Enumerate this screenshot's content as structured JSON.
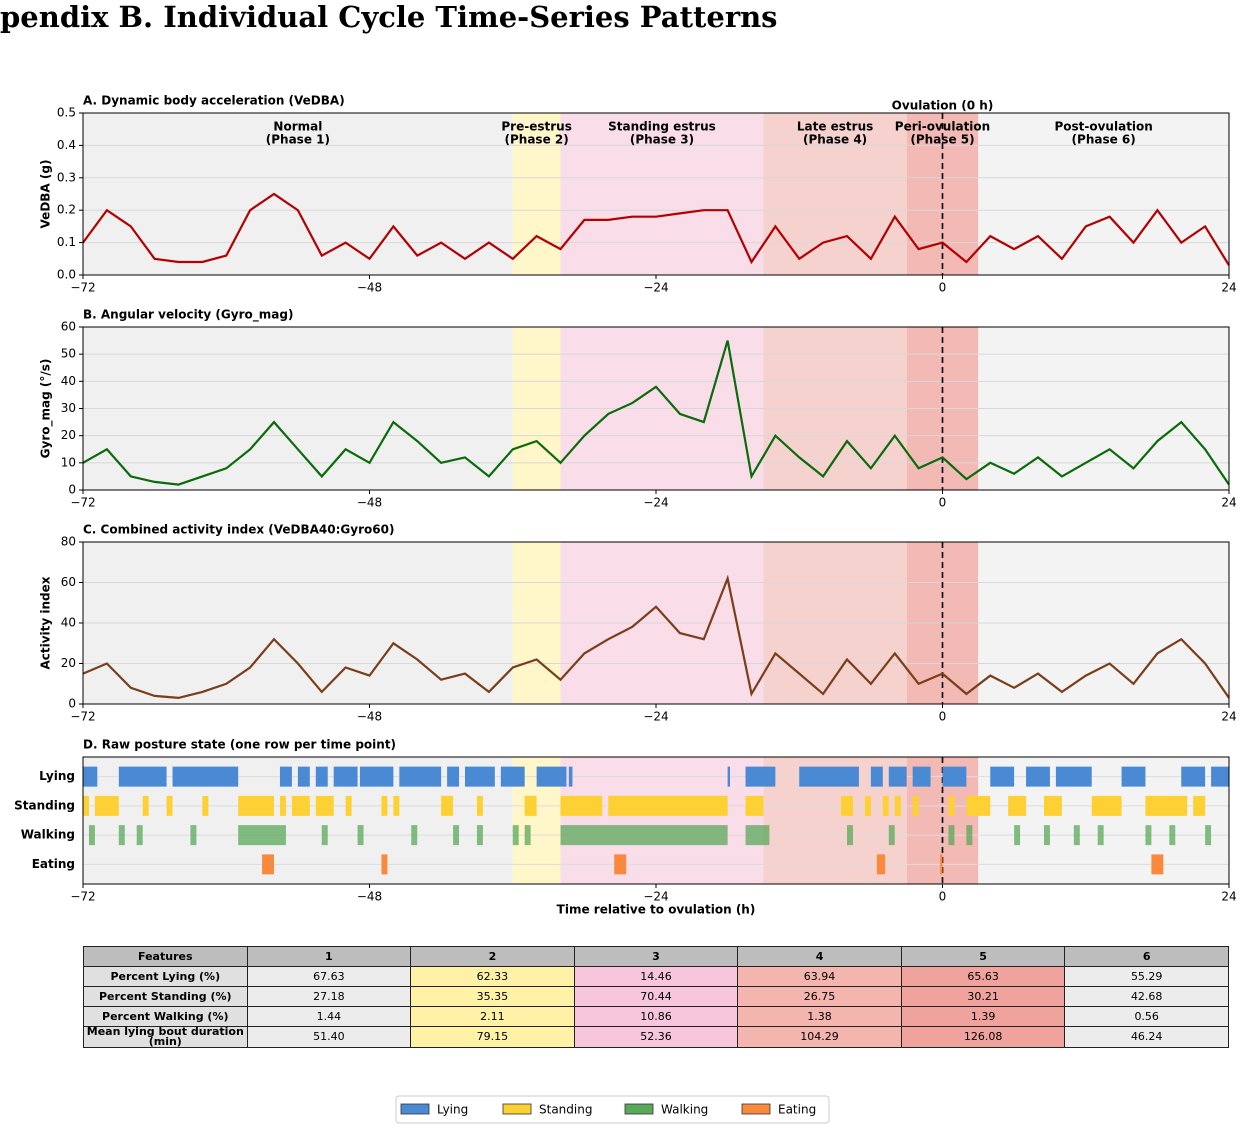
{
  "header": {
    "title": "pendix B. Individual Cycle Time-Series Patterns"
  },
  "chart_data": [
    {
      "type": "line",
      "title": "A.  Dynamic body acceleration (VeDBA)",
      "ylabel": "VeDBA (g)",
      "annotation": {
        "text": "Ovulation (0 h)",
        "x": 0
      },
      "phases": [
        {
          "name": "Normal",
          "sub": "(Phase 1)",
          "start": -72,
          "end": -36,
          "color": "#f0f0f0"
        },
        {
          "name": "Pre-estrus",
          "sub": "(Phase 2)",
          "start": -36,
          "end": -32,
          "color": "#fff6c9"
        },
        {
          "name": "Standing estrus",
          "sub": "(Phase 3)",
          "start": -32,
          "end": -15,
          "color": "#f9dde9"
        },
        {
          "name": "Late estrus",
          "sub": "(Phase 4)",
          "start": -15,
          "end": -3,
          "color": "#f6d2cf"
        },
        {
          "name": "Peri-ovulation",
          "sub": "(Phase 5)",
          "start": -3,
          "end": 3,
          "color": "#f2b9b5"
        },
        {
          "name": "Post-ovulation",
          "sub": "(Phase 6)",
          "start": 3,
          "end": 24,
          "color": "#f3f3f3"
        }
      ],
      "xlim": [
        -72,
        24
      ],
      "xticks": [
        {
          "value": -72,
          "label": "−72"
        },
        {
          "value": -48,
          "label": "−48"
        },
        {
          "value": -24,
          "label": "−24"
        },
        0,
        24
      ],
      "ylim": [
        0,
        0.5
      ],
      "yticks": [
        {
          "value": 0,
          "label": "0.0"
        },
        0.1,
        0.2,
        0.3,
        0.4,
        0.5
      ],
      "grid": true,
      "x": [
        -72,
        -70,
        -68,
        -66,
        -64,
        -62,
        -60,
        -58,
        -56,
        -54,
        -52,
        -50,
        -48,
        -46,
        -44,
        -42,
        -40,
        -38,
        -36,
        -34,
        -32,
        -30,
        -28,
        -26,
        -24,
        -22,
        -20,
        -18,
        -16,
        -14,
        -12,
        -10,
        -8,
        -6,
        -4,
        -2,
        0,
        2,
        4,
        6,
        8,
        10,
        12,
        14,
        16,
        18,
        20,
        22,
        24
      ],
      "series": [
        {
          "name": "VeDBA",
          "color": "#b30000",
          "values": [
            0.1,
            0.2,
            0.15,
            0.05,
            0.04,
            0.04,
            0.06,
            0.2,
            0.25,
            0.2,
            0.06,
            0.1,
            0.05,
            0.15,
            0.06,
            0.1,
            0.05,
            0.1,
            0.05,
            0.12,
            0.08,
            0.17,
            0.17,
            0.18,
            0.18,
            0.19,
            0.2,
            0.2,
            0.04,
            0.15,
            0.05,
            0.1,
            0.12,
            0.05,
            0.18,
            0.08,
            0.1,
            0.04,
            0.12,
            0.08,
            0.12,
            0.05,
            0.15,
            0.18,
            0.1,
            0.2,
            0.1,
            0.15,
            0.03
          ]
        }
      ]
    },
    {
      "type": "line",
      "title": "B.  Angular velocity (Gyro_mag)",
      "ylabel": "Gyro_mag (°/s)",
      "xlim": [
        -72,
        24
      ],
      "xticks": [
        {
          "value": -72,
          "label": "−72"
        },
        {
          "value": -48,
          "label": "−48"
        },
        {
          "value": -24,
          "label": "−24"
        },
        0,
        24
      ],
      "ylim": [
        0,
        60
      ],
      "yticks": [
        0,
        10,
        20,
        30,
        40,
        50,
        60
      ],
      "grid": true,
      "x": [
        -72,
        -70,
        -68,
        -66,
        -64,
        -62,
        -60,
        -58,
        -56,
        -54,
        -52,
        -50,
        -48,
        -46,
        -44,
        -42,
        -40,
        -38,
        -36,
        -34,
        -32,
        -30,
        -28,
        -26,
        -24,
        -22,
        -20,
        -18,
        -16,
        -14,
        -12,
        -10,
        -8,
        -6,
        -4,
        -2,
        0,
        2,
        4,
        6,
        8,
        10,
        12,
        14,
        16,
        18,
        20,
        22,
        24
      ],
      "series": [
        {
          "name": "Gyro_mag",
          "color": "#0b6b0b",
          "values": [
            10,
            15,
            5,
            3,
            2,
            5,
            8,
            15,
            25,
            15,
            5,
            15,
            10,
            25,
            18,
            10,
            12,
            5,
            15,
            18,
            10,
            20,
            28,
            32,
            38,
            28,
            25,
            55,
            5,
            20,
            12,
            5,
            18,
            8,
            20,
            8,
            12,
            4,
            10,
            6,
            12,
            5,
            10,
            15,
            8,
            18,
            25,
            15,
            2
          ]
        }
      ]
    },
    {
      "type": "line",
      "title": "C.  Combined activity index (VeDBA40:Gyro60)",
      "ylabel": "Activity index",
      "xlim": [
        -72,
        24
      ],
      "xticks": [
        {
          "value": -72,
          "label": "−72"
        },
        {
          "value": -48,
          "label": "−48"
        },
        {
          "value": -24,
          "label": "−24"
        },
        0,
        24
      ],
      "ylim": [
        0,
        80
      ],
      "yticks": [
        0,
        20,
        40,
        60,
        80
      ],
      "grid": true,
      "x": [
        -72,
        -70,
        -68,
        -66,
        -64,
        -62,
        -60,
        -58,
        -56,
        -54,
        -52,
        -50,
        -48,
        -46,
        -44,
        -42,
        -40,
        -38,
        -36,
        -34,
        -32,
        -30,
        -28,
        -26,
        -24,
        -22,
        -20,
        -18,
        -16,
        -14,
        -12,
        -10,
        -8,
        -6,
        -4,
        -2,
        0,
        2,
        4,
        6,
        8,
        10,
        12,
        14,
        16,
        18,
        20,
        22,
        24
      ],
      "series": [
        {
          "name": "Activity index",
          "color": "#7a3e1a",
          "values": [
            15,
            20,
            8,
            4,
            3,
            6,
            10,
            18,
            32,
            20,
            6,
            18,
            14,
            30,
            22,
            12,
            15,
            6,
            18,
            22,
            12,
            25,
            32,
            38,
            48,
            35,
            32,
            62,
            5,
            25,
            15,
            5,
            22,
            10,
            25,
            10,
            15,
            5,
            14,
            8,
            15,
            6,
            14,
            20,
            10,
            25,
            32,
            20,
            3
          ]
        }
      ]
    },
    {
      "type": "timeline",
      "title": "D.  Raw posture state (one row per time point)",
      "xlabel": "Time relative to ovulation (h)",
      "xlim": [
        -72,
        24
      ],
      "xticks": [
        {
          "value": -72,
          "label": "−72"
        },
        {
          "value": -48,
          "label": "−48"
        },
        {
          "value": -24,
          "label": "−24"
        },
        0,
        24
      ],
      "series": [
        {
          "name": "Lying",
          "color": "#4a8ad4",
          "segments": [
            [
              -72,
              -70.8
            ],
            [
              -69,
              -65
            ],
            [
              -64.5,
              -59
            ],
            [
              -55.5,
              -54.5
            ],
            [
              -54,
              -53
            ],
            [
              -52.5,
              -51.5
            ],
            [
              -51,
              -49
            ],
            [
              -48.8,
              -46
            ],
            [
              -45.5,
              -42
            ],
            [
              -41.5,
              -40.5
            ],
            [
              -40,
              -37.5
            ],
            [
              -37,
              -35
            ],
            [
              -34,
              -31.5
            ],
            [
              -31.3,
              -31
            ],
            [
              -18,
              -17.8
            ],
            [
              -16.5,
              -14
            ],
            [
              -12,
              -7
            ],
            [
              -6,
              -5
            ],
            [
              -4.5,
              -3
            ],
            [
              -2.5,
              -1
            ],
            [
              0,
              2
            ],
            [
              4,
              6
            ],
            [
              7,
              9
            ],
            [
              9.5,
              12.5
            ],
            [
              15,
              17
            ],
            [
              20,
              22
            ],
            [
              22.5,
              24
            ]
          ]
        },
        {
          "name": "Standing",
          "color": "#fdd034",
          "segments": [
            [
              -72,
              -71.5
            ],
            [
              -71,
              -69
            ],
            [
              -67,
              -66.5
            ],
            [
              -65,
              -64.5
            ],
            [
              -62,
              -61.5
            ],
            [
              -59,
              -56
            ],
            [
              -55.5,
              -55
            ],
            [
              -54.5,
              -53
            ],
            [
              -52.5,
              -51
            ],
            [
              -50,
              -49.5
            ],
            [
              -47,
              -46.5
            ],
            [
              -46,
              -45.5
            ],
            [
              -42,
              -41
            ],
            [
              -39,
              -38.5
            ],
            [
              -35,
              -34
            ],
            [
              -32,
              -28.5
            ],
            [
              -28,
              -18
            ],
            [
              -16.5,
              -15
            ],
            [
              -8.5,
              -7.5
            ],
            [
              -6.5,
              -6
            ],
            [
              -5,
              -4.5
            ],
            [
              -4,
              -3.5
            ],
            [
              -2.5,
              -2
            ],
            [
              0.5,
              1
            ],
            [
              2,
              4
            ],
            [
              5.5,
              7
            ],
            [
              8.5,
              10
            ],
            [
              12.5,
              15
            ],
            [
              17,
              20.5
            ],
            [
              21,
              22
            ]
          ]
        },
        {
          "name": "Walking",
          "color": "#5aa85a",
          "segments": [
            [
              -71.5,
              -71
            ],
            [
              -69,
              -68.5
            ],
            [
              -67.5,
              -67
            ],
            [
              -63,
              -62.5
            ],
            [
              -59,
              -55
            ],
            [
              -52,
              -51.5
            ],
            [
              -49,
              -48.5
            ],
            [
              -44.5,
              -44
            ],
            [
              -41,
              -40.5
            ],
            [
              -39,
              -38.5
            ],
            [
              -36,
              -35.5
            ],
            [
              -35,
              -34.5
            ],
            [
              -32,
              -18
            ],
            [
              -16.5,
              -14.5
            ],
            [
              -8,
              -7.5
            ],
            [
              -4.5,
              -4
            ],
            [
              0.5,
              1
            ],
            [
              2,
              2.5
            ],
            [
              6,
              6.5
            ],
            [
              8.5,
              9
            ],
            [
              11,
              11.5
            ],
            [
              13,
              13.5
            ],
            [
              17,
              17.5
            ],
            [
              19,
              19.5
            ],
            [
              22,
              22.5
            ]
          ]
        },
        {
          "name": "Eating",
          "color": "#f98a3d",
          "segments": [
            [
              -57,
              -56
            ],
            [
              -47,
              -46.5
            ],
            [
              -27.5,
              -26.5
            ],
            [
              -5.5,
              -4.8
            ],
            [
              -0.2,
              0
            ],
            [
              17.5,
              18.5
            ]
          ]
        }
      ]
    }
  ],
  "table": {
    "header": [
      "Features",
      "1",
      "2",
      "3",
      "4",
      "5",
      "6"
    ],
    "rows": [
      [
        "Percent Lying (%)",
        "67.63",
        "62.33",
        "14.46",
        "63.94",
        "65.63",
        "55.29"
      ],
      [
        "Percent Standing (%)",
        "27.18",
        "35.35",
        "70.44",
        "26.75",
        "30.21",
        "42.68"
      ],
      [
        "Percent Walking (%)",
        "1.44",
        "2.11",
        "10.86",
        "1.38",
        "1.39",
        "0.56"
      ],
      [
        "Mean lying bout duration (min)",
        "51.40",
        "79.15",
        "52.36",
        "104.29",
        "126.08",
        "46.24"
      ]
    ]
  }
}
